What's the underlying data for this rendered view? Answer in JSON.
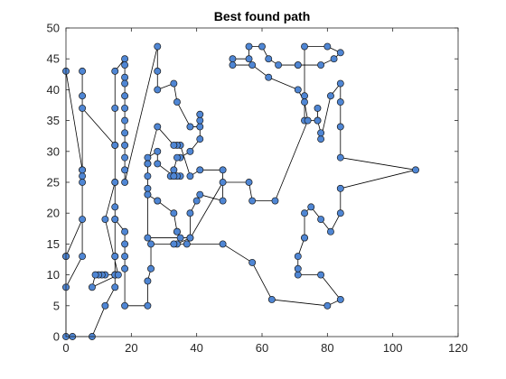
{
  "chart_data": {
    "type": "line",
    "title": "Best found path",
    "xlabel": "",
    "ylabel": "",
    "xlim": [
      0,
      120
    ],
    "ylim": [
      0,
      50
    ],
    "x_ticks": [
      0,
      20,
      40,
      60,
      80,
      100,
      120
    ],
    "y_ticks": [
      0,
      5,
      10,
      15,
      20,
      25,
      30,
      35,
      40,
      45,
      50
    ],
    "grid": false,
    "legend": "none",
    "line_color": "#000000",
    "marker_fill": "#4f86d4",
    "marker_edge": "#1a1a1a",
    "series": [
      {
        "closed": true,
        "x": [
          0,
          2,
          8,
          12,
          15,
          15,
          15,
          15,
          15,
          15,
          15,
          18,
          18,
          18,
          18,
          18,
          18,
          18,
          18,
          18,
          18,
          18,
          18,
          28,
          28,
          28,
          33,
          34,
          38,
          41,
          41,
          41,
          41,
          38,
          35,
          34,
          33,
          32,
          35,
          34,
          33,
          28,
          28,
          25,
          25,
          25,
          25,
          25,
          28,
          28,
          33,
          34,
          34,
          35,
          38,
          38,
          40,
          41,
          48,
          48,
          41,
          38,
          35,
          34,
          33,
          28,
          25,
          25,
          25,
          38,
          34,
          48,
          57,
          63,
          80,
          84,
          78,
          71,
          71,
          71,
          73,
          73,
          73,
          75,
          78,
          81,
          84,
          84,
          107,
          84,
          84,
          84,
          84,
          81,
          78,
          78,
          77,
          77,
          77,
          73,
          73,
          73,
          80,
          84,
          82,
          78,
          71,
          71,
          65,
          62,
          60,
          56,
          56,
          51,
          51,
          57,
          62,
          71,
          73,
          74,
          64,
          57,
          56,
          48,
          37,
          33,
          26,
          26,
          25,
          25,
          18,
          18,
          18,
          18,
          18,
          15,
          15,
          15,
          15,
          15,
          15,
          15,
          12,
          11,
          10,
          9,
          8,
          16,
          12,
          15,
          15,
          5,
          5,
          5,
          5,
          5,
          5,
          0,
          0,
          0,
          5,
          5,
          5,
          0
        ],
        "y": [
          0,
          0,
          0,
          5,
          8,
          13,
          19,
          25,
          31,
          37,
          43,
          45,
          44,
          42,
          41,
          39,
          37,
          35,
          33,
          31,
          29,
          27,
          25,
          47,
          43,
          40,
          41,
          38,
          34,
          34,
          35,
          36,
          32,
          30,
          29,
          29,
          27,
          26,
          26,
          26,
          26,
          28,
          30,
          29,
          28,
          26,
          24,
          23,
          22,
          22,
          20,
          17,
          17,
          16,
          16,
          20,
          22,
          23,
          22,
          27,
          27,
          26,
          31,
          31,
          31,
          34,
          28,
          23,
          16,
          16,
          15,
          15,
          12,
          6,
          5,
          6,
          10,
          10,
          11,
          13,
          16,
          16,
          20,
          21,
          19,
          17,
          20,
          24,
          27,
          29,
          34,
          38,
          41,
          39,
          32,
          33,
          35,
          37,
          35,
          35,
          39,
          47,
          47,
          46,
          45,
          44,
          44,
          44,
          44,
          45,
          47,
          47,
          45,
          45,
          44,
          44,
          42,
          40,
          38,
          35,
          22,
          22,
          25,
          25,
          15,
          15,
          15,
          11,
          9,
          5,
          5,
          11,
          13,
          15,
          17,
          19,
          21,
          13,
          10,
          10,
          10,
          10,
          10,
          10,
          10,
          10,
          8,
          10,
          19,
          25,
          31,
          37,
          43,
          39,
          27,
          26,
          13,
          8,
          13,
          43,
          27,
          25,
          19,
          13
        ]
      }
    ]
  }
}
